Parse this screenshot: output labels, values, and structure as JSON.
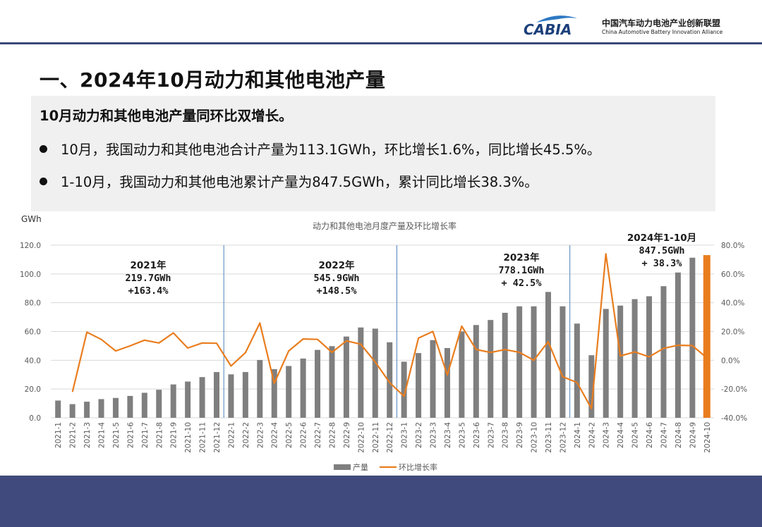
{
  "header": {
    "logo_text": "CABIA",
    "org_name_cn": "中国汽车动力电池产业创新联盟",
    "org_name_en": "China Automotive Battery Innovation Alliance"
  },
  "page_title": "一、2024年10月动力和其他电池产量",
  "summary": {
    "lead": "10月动力和其他电池产量同环比双增长。",
    "items": [
      "10月，我国动力和其他电池合计产量为113.1GWh，环比增长1.6%，同比增长45.5%。",
      "1-10月，我国动力和其他电池累计产量为847.5GWh，累计同比增长38.3%。"
    ]
  },
  "chart_data": {
    "type": "bar",
    "title": "动力和其他电池月度产量及环比增长率",
    "ylabel": "GWh",
    "ylim": [
      0,
      120
    ],
    "y_ticks": [
      "0.0",
      "20.0",
      "40.0",
      "60.0",
      "80.0",
      "100.0",
      "120.0"
    ],
    "y2lim": [
      -40,
      80
    ],
    "y2_ticks": [
      "-40.0%",
      "-20.0%",
      "0.0%",
      "20.0%",
      "40.0%",
      "60.0%",
      "80.0%"
    ],
    "categories": [
      "2021-1",
      "2021-2",
      "2021-3",
      "2021-4",
      "2021-5",
      "2021-6",
      "2021-7",
      "2021-8",
      "2021-9",
      "2021-10",
      "2021-11",
      "2021-12",
      "2022-1",
      "2022-2",
      "2022-3",
      "2022-4",
      "2022-5",
      "2022-6",
      "2022-7",
      "2022-8",
      "2022-9",
      "2022-10",
      "2022-11",
      "2022-12",
      "2023-1",
      "2023-2",
      "2023-3",
      "2023-4",
      "2023-5",
      "2023-6",
      "2023-7",
      "2023-8",
      "2023-9",
      "2023-10",
      "2023-11",
      "2023-12",
      "2024-1",
      "2024-2",
      "2024-3",
      "2024-4",
      "2024-5",
      "2024-6",
      "2024-7",
      "2024-8",
      "2024-9",
      "2024-10"
    ],
    "series": [
      {
        "name": "产量",
        "type": "bar",
        "axis": "left",
        "color": "#7f7f7f",
        "highlight_last_color": "#e97d1e",
        "values": [
          12.0,
          9.5,
          11.2,
          13.0,
          13.8,
          15.2,
          17.4,
          19.5,
          23.2,
          25.2,
          28.3,
          31.8,
          30.2,
          31.8,
          40.2,
          33.8,
          36.0,
          41.2,
          47.2,
          49.8,
          56.5,
          62.8,
          62.0,
          52.5,
          39.0,
          45.0,
          54.0,
          48.5,
          60.0,
          64.5,
          68.0,
          73.0,
          77.5,
          77.5,
          87.5,
          77.5,
          65.5,
          43.5,
          75.7,
          78.0,
          82.5,
          84.5,
          91.5,
          101.0,
          111.3,
          113.1
        ]
      },
      {
        "name": "环比增长率",
        "type": "line",
        "axis": "right",
        "color": "#e97d1e",
        "values": [
          null,
          -22.0,
          19.5,
          14.5,
          6.5,
          10.0,
          14.0,
          12.0,
          19.0,
          8.5,
          12.0,
          11.8,
          -4.0,
          5.3,
          25.9,
          -16.0,
          6.5,
          14.8,
          14.5,
          5.5,
          13.5,
          11.2,
          -1.2,
          -15.5,
          -25.0,
          15.4,
          20.0,
          -10.2,
          23.7,
          7.5,
          5.4,
          7.4,
          5.5,
          0.0,
          12.9,
          -11.4,
          -15.5,
          -33.6,
          74.0,
          3.0,
          5.8,
          2.4,
          8.3,
          10.4,
          10.2,
          1.6
        ]
      }
    ],
    "separators_after": [
      "2021-12",
      "2022-12",
      "2023-12"
    ],
    "annotations": [
      {
        "lines": [
          "2021年",
          "219.7GWh",
          "+163.4%"
        ]
      },
      {
        "lines": [
          "2022年",
          "545.9GWh",
          "+148.5%"
        ]
      },
      {
        "lines": [
          "2023年",
          "778.1GWh",
          "+ 42.5%"
        ]
      },
      {
        "lines": [
          "2024年1-10月",
          "847.5GWh",
          "+ 38.3%"
        ]
      }
    ],
    "legend_position": "bottom-center",
    "grid": true
  }
}
